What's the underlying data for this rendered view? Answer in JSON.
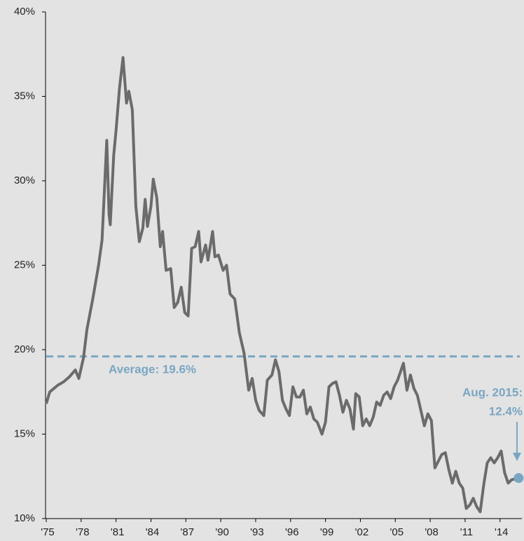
{
  "chart_data": {
    "type": "line",
    "x": [
      1975.0,
      1975.3,
      1976,
      1976.5,
      1977,
      1977.5,
      1977.8,
      1978.2,
      1978.5,
      1979,
      1979.5,
      1979.8,
      1980.2,
      1980.4,
      1980.5,
      1980.8,
      1981,
      1981.3,
      1981.6,
      1981.9,
      1982.1,
      1982.4,
      1982.7,
      1983,
      1983.3,
      1983.5,
      1983.7,
      1984,
      1984.2,
      1984.5,
      1984.8,
      1985,
      1985.3,
      1985.7,
      1986,
      1986.3,
      1986.6,
      1986.9,
      1987.2,
      1987.5,
      1987.8,
      1988.1,
      1988.3,
      1988.7,
      1988.9,
      1989.3,
      1989.5,
      1989.8,
      1990.2,
      1990.5,
      1990.8,
      1991.2,
      1991.6,
      1992,
      1992.4,
      1992.7,
      1993,
      1993.3,
      1993.7,
      1994,
      1994.4,
      1994.7,
      1995,
      1995.3,
      1995.6,
      1995.9,
      1996.2,
      1996.5,
      1996.8,
      1997.1,
      1997.4,
      1997.7,
      1998,
      1998.3,
      1998.7,
      1999,
      1999.3,
      1999.6,
      1999.9,
      2000.2,
      2000.5,
      2000.8,
      2001.1,
      2001.4,
      2001.6,
      2001.9,
      2002.2,
      2002.5,
      2002.8,
      2003.1,
      2003.4,
      2003.7,
      2004,
      2004.3,
      2004.6,
      2004.9,
      2005.2,
      2005.5,
      2005.7,
      2006,
      2006.3,
      2006.6,
      2006.9,
      2007.2,
      2007.5,
      2007.8,
      2008.1,
      2008.4,
      2008.7,
      2009,
      2009.3,
      2009.6,
      2009.9,
      2010.2,
      2010.5,
      2010.8,
      2011.1,
      2011.4,
      2011.7,
      2012,
      2012.3,
      2012.6,
      2012.9,
      2013.2,
      2013.5,
      2013.8,
      2014.1,
      2014.4,
      2014.7,
      2015,
      2015.6
    ],
    "series": [
      {
        "color": "#6b6b6b",
        "values": [
          16.8,
          17.5,
          17.9,
          18.1,
          18.4,
          18.8,
          18.3,
          19.5,
          21.2,
          23,
          25,
          26.5,
          32.4,
          28,
          27.4,
          31.5,
          33,
          35.5,
          37.3,
          34.6,
          35.3,
          34.2,
          28.5,
          26.4,
          27.2,
          28.9,
          27.3,
          28.5,
          30.1,
          29,
          26.1,
          27,
          24.7,
          24.8,
          22.5,
          22.8,
          23.7,
          22.2,
          22,
          26,
          26.1,
          27,
          25.2,
          26.2,
          25.3,
          27,
          25.5,
          25.6,
          24.7,
          25,
          23.3,
          23,
          21,
          19.8,
          17.6,
          18.3,
          17,
          16.4,
          16.1,
          18.2,
          18.5,
          19.4,
          18.7,
          17,
          16.5,
          16.1,
          17.8,
          17.2,
          17.2,
          17.6,
          16.2,
          16.6,
          15.9,
          15.7,
          15,
          15.7,
          17.8,
          18,
          18.1,
          17.3,
          16.3,
          17,
          16.5,
          15.3,
          17.4,
          17.2,
          15.5,
          15.9,
          15.5,
          16,
          16.9,
          16.7,
          17.3,
          17.5,
          17.1,
          17.8,
          18.2,
          18.8,
          19.2,
          17.6,
          18.5,
          17.7,
          17.3,
          16.4,
          15.5,
          16.2,
          15.8,
          13,
          13.4,
          13.8,
          13.9,
          12.9,
          12.1,
          12.8,
          12.1,
          11.8,
          10.6,
          10.8,
          11.2,
          10.7,
          10.4,
          12,
          13.3,
          13.6,
          13.3,
          13.6,
          14,
          12.7,
          12.1,
          12.3,
          12.4
        ]
      }
    ],
    "average": 19.6,
    "average_color": "#7aa6c2",
    "annotations": [
      "Average: 19.6%",
      "Aug. 2015:",
      "12.4%"
    ],
    "xlim": [
      1975,
      2015.7
    ],
    "xticks": [
      {
        "value": 1975,
        "label": "'75"
      },
      {
        "value": 1978,
        "label": "'78"
      },
      {
        "value": 1981,
        "label": "'81"
      },
      {
        "value": 1984,
        "label": "'84"
      },
      {
        "value": 1987,
        "label": "'87"
      },
      {
        "value": 1990,
        "label": "'90"
      },
      {
        "value": 1993,
        "label": "'93"
      },
      {
        "value": 1996,
        "label": "'96"
      },
      {
        "value": 1999,
        "label": "'99"
      },
      {
        "value": 2002,
        "label": "'02"
      },
      {
        "value": 2005,
        "label": "'05"
      },
      {
        "value": 2008,
        "label": "'08"
      },
      {
        "value": 2011,
        "label": "'11"
      },
      {
        "value": 2014,
        "label": "'14"
      }
    ],
    "ylim": [
      10,
      40
    ],
    "yticks": [
      {
        "value": 10,
        "label": "10%"
      },
      {
        "value": 15,
        "label": "15%"
      },
      {
        "value": 20,
        "label": "20%"
      },
      {
        "value": 25,
        "label": "25%"
      },
      {
        "value": 30,
        "label": "30%"
      },
      {
        "value": 35,
        "label": "35%"
      },
      {
        "value": 40,
        "label": "40%"
      }
    ]
  }
}
